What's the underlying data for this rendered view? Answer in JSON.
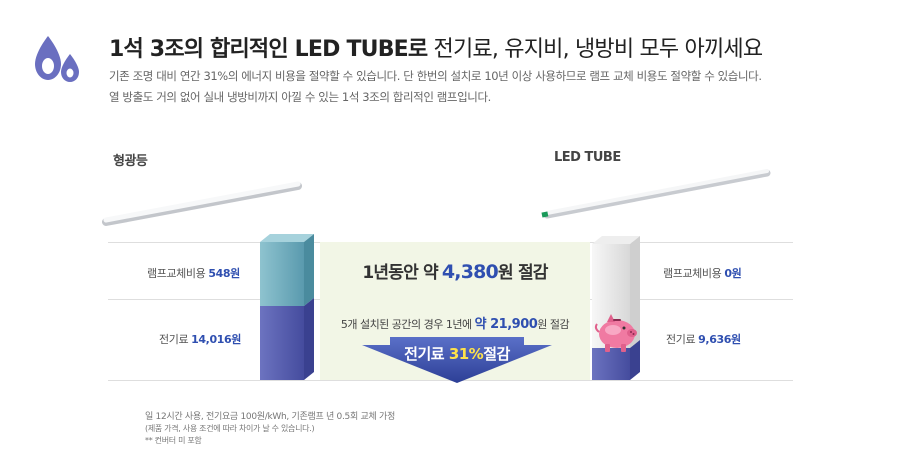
{
  "header": {
    "title_bold": "1석 3조의 합리적인 LED TUBE로",
    "title_rest": " 전기료, 유지비, 냉방비 모두 아끼세요",
    "desc_line1": "기존 조명 대비 연간 31%의 에너지 비용을 절약할 수 있습니다. 단 한번의 설치로 10년 이상 사용하므로 램프 교체 비용도 절약할 수 있습니다.",
    "desc_line2": "열 방출도 거의 없어 실내 냉방비까지 아낄 수 있는 1석 3조의 합리적인 램프입니다."
  },
  "left": {
    "name": "형광등",
    "lamp_label": "램프교체비용",
    "lamp_value": "548원",
    "power_label": "전기료",
    "power_value": "14,016원"
  },
  "right": {
    "name": "LED TUBE",
    "lamp_label": "램프교체비용",
    "lamp_value": "0원",
    "power_label": "전기료",
    "power_value": "9,636원"
  },
  "saving": {
    "main_prefix": "1년동안 약",
    "main_value": "4,380",
    "main_suffix": "원 절감",
    "sub_prefix": "5개 설치된 공간의 경우 1년에",
    "sub_value": "약 21,900",
    "sub_suffix": "원 절감",
    "arrow_prefix": "전기료",
    "arrow_pct": "31%",
    "arrow_suffix": "절감"
  },
  "notes": {
    "line1": "일 12시간 사용, 전기요금 100원/kWh, 기존램프 년 0.5회 교체 가정",
    "line2": "(제품 가격, 사용 조건에 따라 차이가 날 수 있습니다.)",
    "line3": "** 컨버터 미 포함"
  },
  "colors": {
    "accent_blue": "#2f4fb0",
    "highlight_yellow": "#ffe24a",
    "box_bg": "#f2f6e6",
    "icon_purple": "#6a6fc0"
  },
  "icons": {
    "logo": "water-drops-icon",
    "piggy": "piggy-bank-icon"
  }
}
